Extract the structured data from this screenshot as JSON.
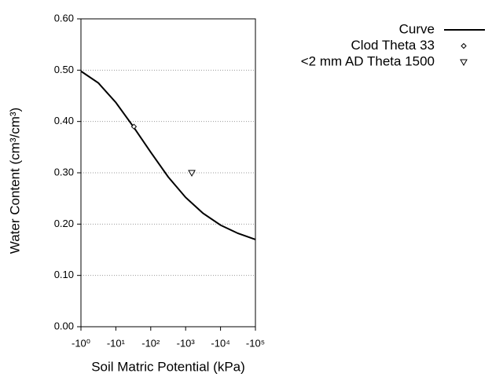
{
  "chart_data": {
    "type": "line",
    "xlabel": "Soil Matric Potential (kPa)",
    "ylabel": "Water Content (cm³/cm³)",
    "xscale": "log",
    "xlim": [
      1,
      100000
    ],
    "xticks": [
      {
        "value": 1,
        "label": "-10⁰"
      },
      {
        "value": 10,
        "label": "-10¹"
      },
      {
        "value": 100,
        "label": "-10²"
      },
      {
        "value": 1000,
        "label": "-10³"
      },
      {
        "value": 10000,
        "label": "-10⁴"
      },
      {
        "value": 100000,
        "label": "-10⁵"
      }
    ],
    "ylim": [
      0,
      0.6
    ],
    "yticks": [
      {
        "value": 0,
        "label": "0.00"
      },
      {
        "value": 0.1,
        "label": "0.10"
      },
      {
        "value": 0.2,
        "label": "0.20"
      },
      {
        "value": 0.3,
        "label": "0.30"
      },
      {
        "value": 0.4,
        "label": "0.40"
      },
      {
        "value": 0.5,
        "label": "0.50"
      },
      {
        "value": 0.6,
        "label": "0.60"
      }
    ],
    "grid": true,
    "legend": "outside-right",
    "series": [
      {
        "name": "Curve",
        "color": "#000000",
        "marker": "none",
        "x": [
          1,
          3.16,
          10,
          31.6,
          100,
          316,
          1000,
          3162,
          10000,
          31623,
          100000
        ],
        "values": [
          0.498,
          0.475,
          0.437,
          0.39,
          0.34,
          0.292,
          0.252,
          0.221,
          0.198,
          0.182,
          0.17
        ]
      },
      {
        "name": "Clod Theta 33",
        "color": "#000000",
        "marker": "diamond",
        "x": [
          33
        ],
        "values": [
          0.39
        ]
      },
      {
        "name": "<2 mm AD Theta 1500",
        "color": "#000000",
        "marker": "triangle-down",
        "x": [
          1500
        ],
        "values": [
          0.3
        ]
      }
    ]
  }
}
